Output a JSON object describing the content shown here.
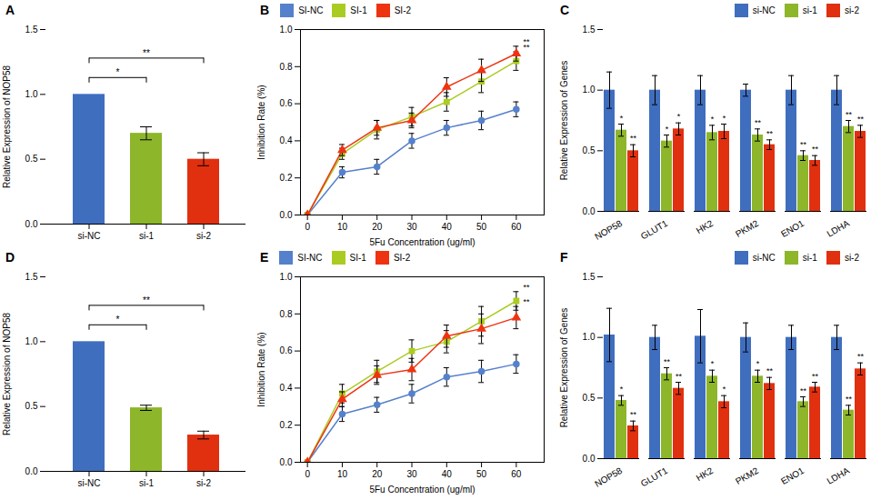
{
  "chart_data": [
    {
      "type": "bar",
      "title": "A",
      "categories": [
        "si-NC",
        "si-1",
        "si-2"
      ],
      "values": [
        1.0,
        0.7,
        0.5
      ],
      "errors": [
        0.0,
        0.05,
        0.05
      ],
      "colors": [
        "#3F6EBF",
        "#8DB62A",
        "#E03010"
      ],
      "ylabel": "Relative Expression of NOP58",
      "ylim": [
        0,
        1.5
      ],
      "yticks": [
        {
          "value": 0,
          "label": "0.0"
        },
        0.5,
        {
          "value": 1,
          "label": "1.0"
        },
        1.5
      ],
      "grid": false,
      "annotations": [
        {
          "from": "si-NC",
          "to": "si-1",
          "y": 1.13,
          "label": "*"
        },
        {
          "from": "si-NC",
          "to": "si-2",
          "y": 1.28,
          "label": "**"
        }
      ]
    },
    {
      "type": "line",
      "title": "B",
      "x": [
        0,
        10,
        20,
        30,
        40,
        50,
        60
      ],
      "series": [
        {
          "name": "SI-NC",
          "color": "#5580CC",
          "marker": "circle",
          "values": [
            0.0,
            0.23,
            0.26,
            0.4,
            0.47,
            0.51,
            0.57
          ],
          "errors": [
            0.0,
            0.03,
            0.04,
            0.04,
            0.04,
            0.05,
            0.04
          ]
        },
        {
          "name": "SI-1",
          "color": "#AACC22",
          "marker": "square",
          "values": [
            0.0,
            0.33,
            0.46,
            0.53,
            0.61,
            0.72,
            0.83
          ],
          "errors": [
            0.0,
            0.03,
            0.05,
            0.05,
            0.05,
            0.06,
            0.05
          ]
        },
        {
          "name": "SI-2",
          "color": "#EE3311",
          "marker": "triangle",
          "values": [
            0.0,
            0.35,
            0.47,
            0.51,
            0.69,
            0.78,
            0.87
          ],
          "errors": [
            0.0,
            0.03,
            0.04,
            0.04,
            0.05,
            0.06,
            0.04
          ]
        }
      ],
      "xlabel": "5Fu Concentration (ug/ml)",
      "ylabel": "Inhibition Rate (%)",
      "xlim": [
        -2,
        68
      ],
      "xticks": [
        0,
        10,
        20,
        30,
        40,
        50,
        60
      ],
      "ylim": [
        0.0,
        1.0
      ],
      "yticks": [
        {
          "value": 0,
          "label": "0.0"
        },
        0.2,
        0.4,
        0.6,
        0.8,
        {
          "value": 1,
          "label": "1.0"
        }
      ],
      "legend": "upper left",
      "grid": false,
      "annotations": [
        {
          "x": 62,
          "y": 0.89,
          "label": "**"
        },
        {
          "x": 62,
          "y": 0.92,
          "label": "**"
        }
      ]
    },
    {
      "type": "bar",
      "title": "C",
      "categories": [
        "NOP58",
        "GLUT1",
        "HK2",
        "PKM2",
        "ENO1",
        "LDHA"
      ],
      "series": [
        {
          "name": "si-NC",
          "color": "#3F6EBF",
          "values": [
            1.0,
            1.0,
            1.0,
            1.0,
            1.0,
            1.0
          ],
          "errors": [
            0.15,
            0.12,
            0.12,
            0.05,
            0.12,
            0.12
          ]
        },
        {
          "name": "si-1",
          "color": "#8DB62A",
          "values": [
            0.67,
            0.58,
            0.65,
            0.63,
            0.46,
            0.7
          ],
          "errors": [
            0.05,
            0.05,
            0.06,
            0.05,
            0.04,
            0.05
          ]
        },
        {
          "name": "si-2",
          "color": "#E03010",
          "values": [
            0.5,
            0.68,
            0.66,
            0.55,
            0.42,
            0.66
          ],
          "errors": [
            0.05,
            0.05,
            0.06,
            0.04,
            0.04,
            0.05
          ]
        }
      ],
      "ylabel": "Relative Expression of Genes",
      "ylim": [
        0,
        1.5
      ],
      "yticks": [
        {
          "value": 0,
          "label": "0.0"
        },
        0.5,
        {
          "value": 1,
          "label": "1.0"
        },
        1.5
      ],
      "legend": "upper right",
      "grid": false,
      "annotations": [
        {
          "category": "NOP58",
          "series": "si-1",
          "y": 0.75,
          "label": "*"
        },
        {
          "category": "NOP58",
          "series": "si-2",
          "y": 0.58,
          "label": "**"
        },
        {
          "category": "GLUT1",
          "series": "si-1",
          "y": 0.66,
          "label": "*"
        },
        {
          "category": "GLUT1",
          "series": "si-2",
          "y": 0.76,
          "label": "*"
        },
        {
          "category": "HK2",
          "series": "si-1",
          "y": 0.74,
          "label": "*"
        },
        {
          "category": "HK2",
          "series": "si-2",
          "y": 0.75,
          "label": "*"
        },
        {
          "category": "PKM2",
          "series": "si-1",
          "y": 0.71,
          "label": "**"
        },
        {
          "category": "PKM2",
          "series": "si-2",
          "y": 0.62,
          "label": "**"
        },
        {
          "category": "ENO1",
          "series": "si-1",
          "y": 0.53,
          "label": "**"
        },
        {
          "category": "ENO1",
          "series": "si-2",
          "y": 0.49,
          "label": "**"
        },
        {
          "category": "LDHA",
          "series": "si-1",
          "y": 0.78,
          "label": "**"
        },
        {
          "category": "LDHA",
          "series": "si-2",
          "y": 0.74,
          "label": "**"
        }
      ]
    },
    {
      "type": "bar",
      "title": "D",
      "categories": [
        "si-NC",
        "si-1",
        "si-2"
      ],
      "values": [
        1.0,
        0.49,
        0.28
      ],
      "errors": [
        0.0,
        0.02,
        0.03
      ],
      "colors": [
        "#3F6EBF",
        "#8DB62A",
        "#E03010"
      ],
      "ylabel": "Relative Expression of NOP58",
      "ylim": [
        0,
        1.5
      ],
      "yticks": [
        {
          "value": 0,
          "label": "0.0"
        },
        0.5,
        {
          "value": 1,
          "label": "1.0"
        },
        1.5
      ],
      "grid": false,
      "annotations": [
        {
          "from": "si-NC",
          "to": "si-1",
          "y": 1.13,
          "label": "*"
        },
        {
          "from": "si-NC",
          "to": "si-2",
          "y": 1.28,
          "label": "**"
        }
      ]
    },
    {
      "type": "line",
      "title": "E",
      "x": [
        0,
        10,
        20,
        30,
        40,
        50,
        60
      ],
      "series": [
        {
          "name": "SI-NC",
          "color": "#5580CC",
          "marker": "circle",
          "values": [
            0.0,
            0.26,
            0.31,
            0.37,
            0.46,
            0.49,
            0.53
          ],
          "errors": [
            0.0,
            0.04,
            0.04,
            0.05,
            0.05,
            0.06,
            0.05
          ]
        },
        {
          "name": "SI-1",
          "color": "#AACC22",
          "marker": "square",
          "values": [
            0.0,
            0.37,
            0.49,
            0.6,
            0.65,
            0.76,
            0.87
          ],
          "errors": [
            0.0,
            0.05,
            0.06,
            0.06,
            0.06,
            0.08,
            0.05
          ]
        },
        {
          "name": "SI-2",
          "color": "#EE3311",
          "marker": "triangle",
          "values": [
            0.0,
            0.34,
            0.47,
            0.5,
            0.68,
            0.72,
            0.78
          ],
          "errors": [
            0.0,
            0.04,
            0.05,
            0.06,
            0.06,
            0.08,
            0.06
          ]
        }
      ],
      "xlabel": "5Fu Concentration (ug/ml)",
      "ylabel": "Inhibition Rate (%)",
      "xlim": [
        -2,
        68
      ],
      "xticks": [
        0,
        10,
        20,
        30,
        40,
        50,
        60
      ],
      "ylim": [
        0.0,
        1.0
      ],
      "yticks": [
        {
          "value": 0,
          "label": "0.0"
        },
        0.2,
        0.4,
        0.6,
        0.8,
        {
          "value": 1,
          "label": "1.0"
        }
      ],
      "legend": "upper left",
      "grid": false,
      "annotations": [
        {
          "x": 62,
          "y": 0.93,
          "label": "**"
        },
        {
          "x": 62,
          "y": 0.85,
          "label": "**"
        }
      ]
    },
    {
      "type": "bar",
      "title": "F",
      "categories": [
        "NOP58",
        "GLUT1",
        "HK2",
        "PKM2",
        "ENO1",
        "LDHA"
      ],
      "series": [
        {
          "name": "si-NC",
          "color": "#3F6EBF",
          "values": [
            1.02,
            1.0,
            1.01,
            1.0,
            1.0,
            1.0
          ],
          "errors": [
            0.22,
            0.1,
            0.22,
            0.12,
            0.1,
            0.1
          ]
        },
        {
          "name": "si-1",
          "color": "#8DB62A",
          "values": [
            0.48,
            0.7,
            0.68,
            0.68,
            0.47,
            0.4
          ],
          "errors": [
            0.04,
            0.05,
            0.05,
            0.05,
            0.04,
            0.04
          ]
        },
        {
          "name": "si-2",
          "color": "#E03010",
          "values": [
            0.27,
            0.58,
            0.47,
            0.62,
            0.59,
            0.74
          ],
          "errors": [
            0.04,
            0.05,
            0.05,
            0.05,
            0.04,
            0.05
          ]
        }
      ],
      "ylabel": "Relative Expression of Genes",
      "ylim": [
        0,
        1.5
      ],
      "yticks": [
        {
          "value": 0,
          "label": "0.0"
        },
        0.5,
        {
          "value": 1,
          "label": "1.0"
        },
        1.5
      ],
      "legend": "upper right",
      "grid": false,
      "annotations": [
        {
          "category": "NOP58",
          "series": "si-1",
          "y": 0.55,
          "label": "*"
        },
        {
          "category": "NOP58",
          "series": "si-2",
          "y": 0.34,
          "label": "**"
        },
        {
          "category": "GLUT1",
          "series": "si-1",
          "y": 0.78,
          "label": "**"
        },
        {
          "category": "GLUT1",
          "series": "si-2",
          "y": 0.66,
          "label": "**"
        },
        {
          "category": "HK2",
          "series": "si-1",
          "y": 0.76,
          "label": "*"
        },
        {
          "category": "HK2",
          "series": "si-2",
          "y": 0.55,
          "label": "*"
        },
        {
          "category": "PKM2",
          "series": "si-1",
          "y": 0.76,
          "label": "*"
        },
        {
          "category": "PKM2",
          "series": "si-2",
          "y": 0.7,
          "label": "**"
        },
        {
          "category": "ENO1",
          "series": "si-1",
          "y": 0.54,
          "label": "**"
        },
        {
          "category": "ENO1",
          "series": "si-2",
          "y": 0.66,
          "label": "**"
        },
        {
          "category": "LDHA",
          "series": "si-1",
          "y": 0.47,
          "label": "**"
        },
        {
          "category": "LDHA",
          "series": "si-2",
          "y": 0.82,
          "label": "**"
        }
      ]
    }
  ]
}
